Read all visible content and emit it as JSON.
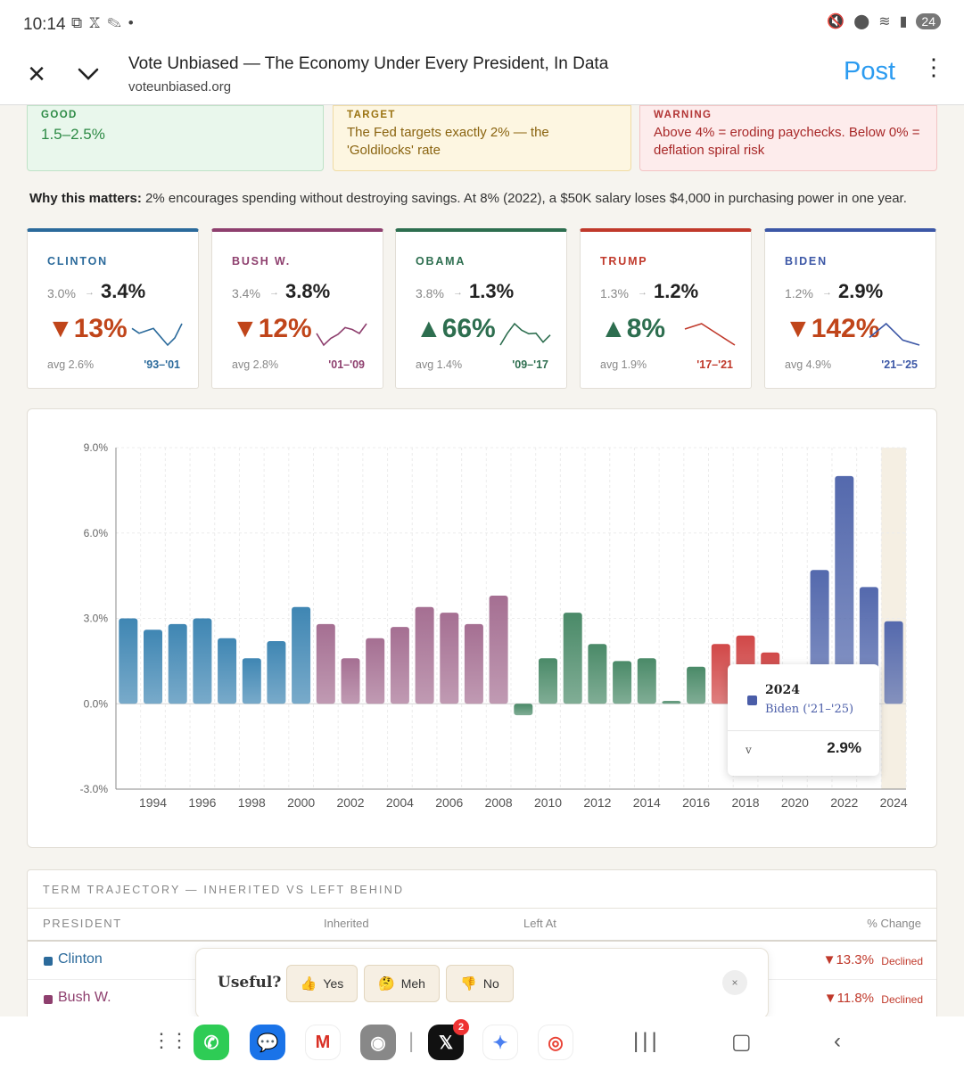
{
  "status_bar": {
    "time": "10:14",
    "battery": "24"
  },
  "app_header": {
    "title": "Vote Unbiased — The Economy Under Every President, In Data",
    "url": "voteunbiased.org",
    "post_label": "Post"
  },
  "callouts": {
    "good": {
      "label": "GOOD",
      "text": "1.5–2.5%"
    },
    "target": {
      "label": "TARGET",
      "text": "The Fed targets exactly 2% — the 'Goldilocks' rate"
    },
    "warning": {
      "label": "WARNING",
      "text": "Above 4% = eroding paychecks. Below 0% = deflation spiral risk"
    }
  },
  "why": {
    "lead": "Why this matters:",
    "text": "2% encourages spending without destroying savings. At 8% (2022), a $50K salary loses $4,000 in purchasing power in one year."
  },
  "presidents": [
    {
      "name": "CLINTON",
      "from": "3.0%",
      "to": "3.4%",
      "change": "▼13%",
      "avg": "avg 2.6%",
      "years": "'93–'01",
      "color": "#2b6a9b",
      "change_color": "#c0451a",
      "spark": [
        3.0,
        2.6,
        2.8,
        3.0,
        2.3,
        1.6,
        2.2,
        3.4
      ]
    },
    {
      "name": "BUSH W.",
      "from": "3.4%",
      "to": "3.8%",
      "change": "▼12%",
      "avg": "avg 2.8%",
      "years": "'01–'09",
      "color": "#8e3f6e",
      "change_color": "#c0451a",
      "spark": [
        2.8,
        1.6,
        2.3,
        2.7,
        3.4,
        3.2,
        2.8,
        3.8
      ]
    },
    {
      "name": "OBAMA",
      "from": "3.8%",
      "to": "1.3%",
      "change": "▲66%",
      "avg": "avg 1.4%",
      "years": "'09–'17",
      "color": "#2d6e4f",
      "change_color": "#2d6e4f",
      "spark": [
        -0.4,
        1.6,
        3.2,
        2.1,
        1.5,
        1.6,
        0.1,
        1.3
      ]
    },
    {
      "name": "TRUMP",
      "from": "1.3%",
      "to": "1.2%",
      "change": "▲8%",
      "avg": "avg 1.9%",
      "years": "'17–'21",
      "color": "#c0392b",
      "change_color": "#2d6e4f",
      "spark": [
        2.1,
        2.4,
        1.8,
        1.2
      ]
    },
    {
      "name": "BIDEN",
      "from": "1.2%",
      "to": "2.9%",
      "change": "▼142%",
      "avg": "avg 4.9%",
      "years": "'21–'25",
      "color": "#3c57a6",
      "change_color": "#c0451a",
      "spark": [
        4.7,
        8.0,
        4.1,
        2.9
      ]
    }
  ],
  "chart_data": {
    "type": "bar",
    "x": [
      1993,
      1994,
      1995,
      1996,
      1997,
      1998,
      1999,
      2000,
      2001,
      2002,
      2003,
      2004,
      2005,
      2006,
      2007,
      2008,
      2009,
      2010,
      2011,
      2012,
      2013,
      2014,
      2015,
      2016,
      2017,
      2018,
      2019,
      2020,
      2021,
      2022,
      2023,
      2024
    ],
    "values": [
      3.0,
      2.6,
      2.8,
      3.0,
      2.3,
      1.6,
      2.2,
      3.4,
      2.8,
      1.6,
      2.3,
      2.7,
      3.4,
      3.2,
      2.8,
      3.8,
      -0.4,
      1.6,
      3.2,
      2.1,
      1.5,
      1.6,
      0.1,
      1.3,
      2.1,
      2.4,
      1.8,
      1.2,
      4.7,
      8.0,
      4.1,
      2.9
    ],
    "president": [
      "Clinton",
      "Clinton",
      "Clinton",
      "Clinton",
      "Clinton",
      "Clinton",
      "Clinton",
      "Clinton",
      "Bush W.",
      "Bush W.",
      "Bush W.",
      "Bush W.",
      "Bush W.",
      "Bush W.",
      "Bush W.",
      "Bush W.",
      "Obama",
      "Obama",
      "Obama",
      "Obama",
      "Obama",
      "Obama",
      "Obama",
      "Obama",
      "Trump",
      "Trump",
      "Trump",
      "Trump",
      "Biden",
      "Biden",
      "Biden",
      "Biden"
    ],
    "series_colors": {
      "Clinton": "#3f86b3",
      "Bush W.": "#a56f92",
      "Obama": "#4a8a68",
      "Trump": "#d14848",
      "Biden": "#5469ad"
    },
    "ylim": [
      -3,
      9
    ],
    "yticks": [
      "-3.0%",
      "0.0%",
      "3.0%",
      "6.0%",
      "9.0%"
    ],
    "ytick_values": [
      -3,
      0,
      3,
      6,
      9
    ],
    "xtick_labels": [
      "1994",
      "1996",
      "1998",
      "2000",
      "2002",
      "2004",
      "2006",
      "2008",
      "2010",
      "2012",
      "2014",
      "2016",
      "2018",
      "2020",
      "2022",
      "2024"
    ],
    "grid": true,
    "highlight_year": 2024,
    "tooltip": {
      "year": "2024",
      "president": "Biden ('21–'25)",
      "key": "v",
      "value": "2.9%"
    }
  },
  "table": {
    "title": "TERM TRAJECTORY — INHERITED VS LEFT BEHIND",
    "headers": {
      "president": "PRESIDENT",
      "inherited": "Inherited",
      "left_at": "Left At",
      "change": "% Change"
    },
    "rows": [
      {
        "name": "Clinton",
        "change": "▼13.3%",
        "status": "Declined",
        "color": "#2b6a9b"
      },
      {
        "name": "Bush W.",
        "change": "▼11.8%",
        "status": "Declined",
        "color": "#8e3f6e"
      }
    ]
  },
  "feedback": {
    "label": "Useful?",
    "yes": "Yes",
    "meh": "Meh",
    "no": "No",
    "close": "×"
  }
}
